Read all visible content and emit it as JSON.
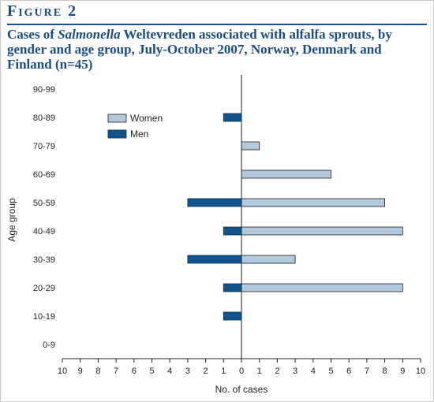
{
  "figure_label": "Figure 2",
  "title_parts": {
    "pre": "Cases of ",
    "italic": "Salmonella",
    "post": " Weltevreden associated with alfalfa sprouts, by gender and age group, July-October 2007, Norway, Denmark and Finland (n=45)"
  },
  "chart_data": {
    "type": "bar",
    "orientation": "horizontal",
    "layout": "population-pyramid",
    "categories": [
      "90-99",
      "80-89",
      "70-79",
      "60-69",
      "50-59",
      "40-49",
      "30-39",
      "20-29",
      "10-19",
      "0-9"
    ],
    "series": [
      {
        "name": "Women",
        "side": "right",
        "color": "#b3c7dd",
        "values": [
          0,
          0,
          1,
          5,
          8,
          9,
          3,
          9,
          0,
          0
        ]
      },
      {
        "name": "Men",
        "side": "left",
        "color": "#11548c",
        "values": [
          0,
          1,
          0,
          0,
          3,
          1,
          3,
          1,
          1,
          0
        ]
      }
    ],
    "xlabel": "No. of cases",
    "ylabel": "Age group",
    "x_ticks": [
      "10",
      "9",
      "8",
      "7",
      "6",
      "5",
      "4",
      "3",
      "2",
      "1",
      "0",
      "1",
      "2",
      "3",
      "4",
      "5",
      "6",
      "7",
      "8",
      "9",
      "10"
    ],
    "xlim": [
      -10,
      10
    ],
    "legend_position": "upper-left",
    "grid": false
  }
}
